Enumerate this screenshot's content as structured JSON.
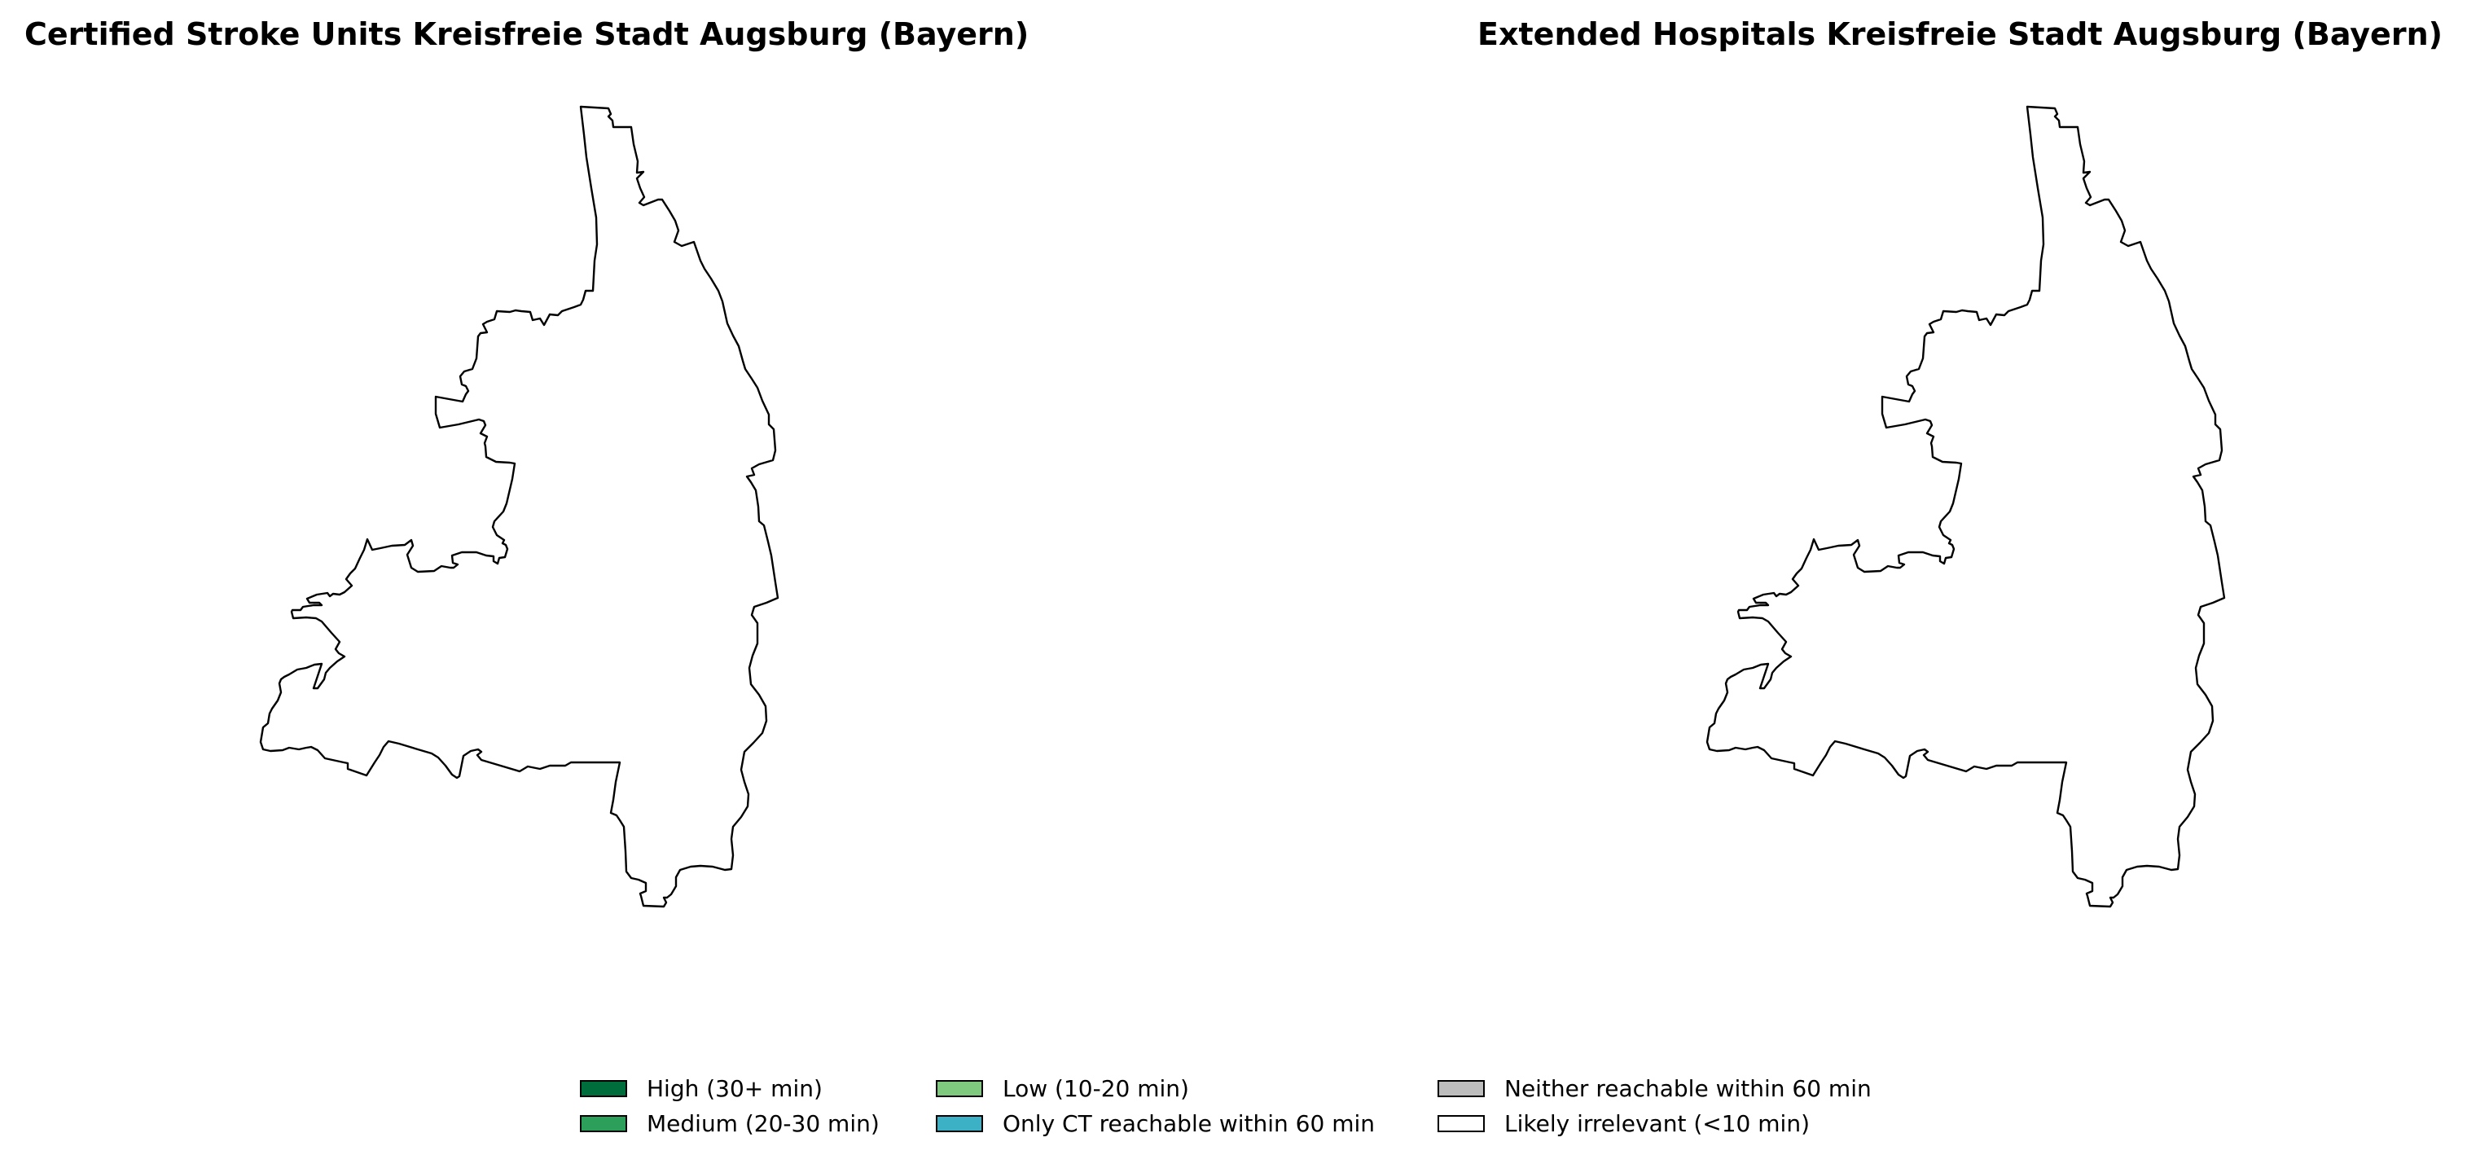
{
  "maps": [
    {
      "title": "Certified Stroke Units Kreisfreie Stadt Augsburg (Bayern)"
    },
    {
      "title": "Extended Hospitals Kreisfreie Stadt Augsburg (Bayern)"
    }
  ],
  "region_fill": "#ffffff",
  "legend": {
    "items": [
      {
        "label": "High (30+ min)",
        "color": "#006d3c"
      },
      {
        "label": "Medium (20-30 min)",
        "color": "#2ca05a"
      },
      {
        "label": "Low (10-20 min)",
        "color": "#7ec97e"
      },
      {
        "label": "Only CT reachable within 60 min",
        "color": "#3cb0c4"
      },
      {
        "label": "Neither reachable within 60 min",
        "color": "#bdbdbd"
      },
      {
        "label": "Likely irrelevant (<10 min)",
        "color": "#ffffff"
      }
    ]
  }
}
